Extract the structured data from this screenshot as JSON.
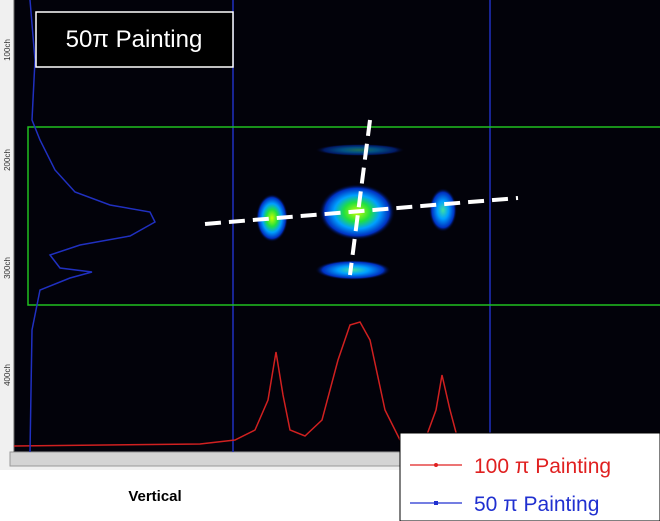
{
  "image": {
    "label": "50π Painting",
    "axis_ticks": [
      "100ch",
      "200ch",
      "300ch",
      "400ch"
    ],
    "axis_title": "Vertical"
  },
  "legend": {
    "entries": [
      "100 π Painting",
      "50 π Painting"
    ]
  }
}
